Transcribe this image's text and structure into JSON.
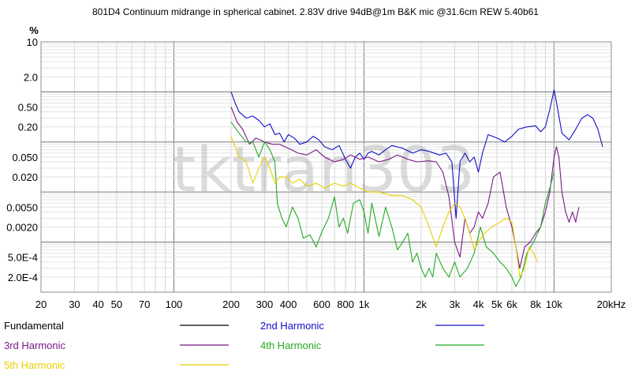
{
  "chart_data": {
    "type": "line",
    "title": "801D4 Continuum midrange in spherical cabinet. 2.83V drive 94dB@1m B&K mic @31.6cm REW 5.40b61",
    "ylabel": "%",
    "watermark": "tktran303",
    "x_scale": "log",
    "y_scale": "log",
    "xlim": [
      20,
      20000
    ],
    "ylim": [
      0.0001,
      10
    ],
    "x_ticks": [
      {
        "value": 20,
        "label": "20"
      },
      {
        "value": 30,
        "label": "30"
      },
      {
        "value": 40,
        "label": "40"
      },
      {
        "value": 50,
        "label": "50"
      },
      {
        "value": 70,
        "label": "70"
      },
      {
        "value": 100,
        "label": "100"
      },
      {
        "value": 200,
        "label": "200"
      },
      {
        "value": 300,
        "label": "300"
      },
      {
        "value": 400,
        "label": "400"
      },
      {
        "value": 600,
        "label": "600"
      },
      {
        "value": 800,
        "label": "800"
      },
      {
        "value": 1000,
        "label": "1k"
      },
      {
        "value": 2000,
        "label": "2k"
      },
      {
        "value": 3000,
        "label": "3k"
      },
      {
        "value": 4000,
        "label": "4k"
      },
      {
        "value": 5000,
        "label": "5k"
      },
      {
        "value": 6000,
        "label": "6k"
      },
      {
        "value": 8000,
        "label": "8k"
      },
      {
        "value": 10000,
        "label": "10k"
      },
      {
        "value": 20000,
        "label": "20kHz"
      }
    ],
    "y_ticks": [
      {
        "value": 10,
        "label": "10"
      },
      {
        "value": 2,
        "label": "2.0"
      },
      {
        "value": 0.5,
        "label": "0.50"
      },
      {
        "value": 0.2,
        "label": "0.20"
      },
      {
        "value": 0.05,
        "label": "0.050"
      },
      {
        "value": 0.02,
        "label": "0.020"
      },
      {
        "value": 0.005,
        "label": "0.0050"
      },
      {
        "value": 0.002,
        "label": "0.0020"
      },
      {
        "value": 0.0005,
        "label": "5.0E-4"
      },
      {
        "value": 0.0002,
        "label": "2.0E-4"
      }
    ],
    "series": [
      {
        "name": "Fundamental",
        "color": "#000000",
        "points": []
      },
      {
        "name": "2nd Harmonic",
        "color": "#1010c8",
        "points": [
          [
            200,
            1.0
          ],
          [
            210,
            0.6
          ],
          [
            220,
            0.4
          ],
          [
            240,
            0.3
          ],
          [
            260,
            0.33
          ],
          [
            280,
            0.27
          ],
          [
            300,
            0.2
          ],
          [
            320,
            0.23
          ],
          [
            340,
            0.14
          ],
          [
            360,
            0.15
          ],
          [
            380,
            0.1
          ],
          [
            400,
            0.14
          ],
          [
            430,
            0.12
          ],
          [
            460,
            0.09
          ],
          [
            500,
            0.1
          ],
          [
            540,
            0.13
          ],
          [
            580,
            0.11
          ],
          [
            620,
            0.08
          ],
          [
            680,
            0.07
          ],
          [
            740,
            0.085
          ],
          [
            800,
            0.045
          ],
          [
            850,
            0.03
          ],
          [
            900,
            0.05
          ],
          [
            950,
            0.06
          ],
          [
            1000,
            0.045
          ],
          [
            1050,
            0.06
          ],
          [
            1100,
            0.065
          ],
          [
            1200,
            0.055
          ],
          [
            1300,
            0.07
          ],
          [
            1400,
            0.085
          ],
          [
            1600,
            0.075
          ],
          [
            1800,
            0.06
          ],
          [
            2000,
            0.07
          ],
          [
            2200,
            0.065
          ],
          [
            2500,
            0.055
          ],
          [
            2700,
            0.06
          ],
          [
            2900,
            0.04
          ],
          [
            3050,
            0.003
          ],
          [
            3200,
            0.04
          ],
          [
            3400,
            0.06
          ],
          [
            3600,
            0.04
          ],
          [
            3800,
            0.05
          ],
          [
            4000,
            0.025
          ],
          [
            4200,
            0.06
          ],
          [
            4500,
            0.14
          ],
          [
            5000,
            0.12
          ],
          [
            5500,
            0.1
          ],
          [
            6000,
            0.13
          ],
          [
            6500,
            0.18
          ],
          [
            7200,
            0.2
          ],
          [
            8000,
            0.21
          ],
          [
            8500,
            0.16
          ],
          [
            9000,
            0.2
          ],
          [
            9500,
            0.45
          ],
          [
            10000,
            1.1
          ],
          [
            10400,
            0.5
          ],
          [
            11000,
            0.15
          ],
          [
            12000,
            0.11
          ],
          [
            13000,
            0.18
          ],
          [
            14000,
            0.3
          ],
          [
            15000,
            0.35
          ],
          [
            16000,
            0.3
          ],
          [
            17000,
            0.18
          ],
          [
            18000,
            0.08
          ]
        ]
      },
      {
        "name": "3rd Harmonic",
        "color": "#7a1888",
        "points": [
          [
            200,
            0.5
          ],
          [
            215,
            0.25
          ],
          [
            230,
            0.18
          ],
          [
            250,
            0.09
          ],
          [
            270,
            0.12
          ],
          [
            300,
            0.1
          ],
          [
            330,
            0.09
          ],
          [
            360,
            0.09
          ],
          [
            400,
            0.075
          ],
          [
            450,
            0.06
          ],
          [
            500,
            0.055
          ],
          [
            560,
            0.07
          ],
          [
            620,
            0.05
          ],
          [
            700,
            0.04
          ],
          [
            780,
            0.045
          ],
          [
            850,
            0.055
          ],
          [
            950,
            0.045
          ],
          [
            1050,
            0.05
          ],
          [
            1200,
            0.04
          ],
          [
            1350,
            0.045
          ],
          [
            1500,
            0.055
          ],
          [
            1700,
            0.045
          ],
          [
            1900,
            0.04
          ],
          [
            2200,
            0.042
          ],
          [
            2400,
            0.04
          ],
          [
            2600,
            0.025
          ],
          [
            2800,
            0.008
          ],
          [
            3000,
            0.001
          ],
          [
            3200,
            0.0005
          ],
          [
            3400,
            0.003
          ],
          [
            3600,
            0.0015
          ],
          [
            3800,
            0.002
          ],
          [
            4000,
            0.004
          ],
          [
            4200,
            0.003
          ],
          [
            4500,
            0.006
          ],
          [
            4800,
            0.02
          ],
          [
            5200,
            0.025
          ],
          [
            5600,
            0.005
          ],
          [
            6000,
            0.002
          ],
          [
            6300,
            0.0008
          ],
          [
            6600,
            0.0003
          ],
          [
            7000,
            0.0008
          ],
          [
            7500,
            0.001
          ],
          [
            8000,
            0.0015
          ],
          [
            8500,
            0.002
          ],
          [
            9000,
            0.004
          ],
          [
            9500,
            0.01
          ],
          [
            10000,
            0.05
          ],
          [
            10300,
            0.08
          ],
          [
            10600,
            0.05
          ],
          [
            11000,
            0.01
          ],
          [
            11500,
            0.004
          ],
          [
            12000,
            0.0025
          ],
          [
            12500,
            0.004
          ],
          [
            13000,
            0.0025
          ],
          [
            13500,
            0.005
          ]
        ]
      },
      {
        "name": "4th Harmonic",
        "color": "#22aa22",
        "points": [
          [
            200,
            0.25
          ],
          [
            220,
            0.15
          ],
          [
            240,
            0.1
          ],
          [
            260,
            0.1
          ],
          [
            280,
            0.05
          ],
          [
            300,
            0.1
          ],
          [
            320,
            0.07
          ],
          [
            340,
            0.04
          ],
          [
            350,
            0.006
          ],
          [
            370,
            0.003
          ],
          [
            390,
            0.002
          ],
          [
            420,
            0.005
          ],
          [
            450,
            0.003
          ],
          [
            480,
            0.0012
          ],
          [
            520,
            0.0014
          ],
          [
            560,
            0.0008
          ],
          [
            600,
            0.0016
          ],
          [
            650,
            0.003
          ],
          [
            700,
            0.008
          ],
          [
            740,
            0.002
          ],
          [
            780,
            0.003
          ],
          [
            820,
            0.0015
          ],
          [
            880,
            0.006
          ],
          [
            950,
            0.007
          ],
          [
            1000,
            0.004
          ],
          [
            1050,
            0.0015
          ],
          [
            1100,
            0.006
          ],
          [
            1200,
            0.0013
          ],
          [
            1300,
            0.005
          ],
          [
            1400,
            0.002
          ],
          [
            1500,
            0.0007
          ],
          [
            1600,
            0.001
          ],
          [
            1700,
            0.0015
          ],
          [
            1800,
            0.0004
          ],
          [
            1900,
            0.0006
          ],
          [
            2000,
            0.0003
          ],
          [
            2100,
            0.0002
          ],
          [
            2200,
            0.0003
          ],
          [
            2300,
            0.0002
          ],
          [
            2400,
            0.0006
          ],
          [
            2600,
            0.0003
          ],
          [
            2800,
            0.0002
          ],
          [
            3000,
            0.0004
          ],
          [
            3200,
            0.0002
          ],
          [
            3500,
            0.0003
          ],
          [
            3800,
            0.0006
          ],
          [
            4100,
            0.002
          ],
          [
            4400,
            0.0008
          ],
          [
            4800,
            0.0006
          ],
          [
            5200,
            0.0004
          ],
          [
            5600,
            0.0003
          ],
          [
            6000,
            0.0002
          ],
          [
            6300,
            0.00013
          ],
          [
            6700,
            0.0002
          ],
          [
            7200,
            0.0006
          ],
          [
            7800,
            0.001
          ],
          [
            8500,
            0.002
          ],
          [
            9000,
            0.006
          ],
          [
            9500,
            0.012
          ],
          [
            10000,
            0.025
          ]
        ]
      },
      {
        "name": "5th Harmonic",
        "color": "#e8d000",
        "points": [
          [
            200,
            0.13
          ],
          [
            220,
            0.05
          ],
          [
            240,
            0.04
          ],
          [
            260,
            0.015
          ],
          [
            280,
            0.03
          ],
          [
            300,
            0.05
          ],
          [
            320,
            0.03
          ],
          [
            340,
            0.015
          ],
          [
            360,
            0.02
          ],
          [
            390,
            0.02
          ],
          [
            420,
            0.015
          ],
          [
            460,
            0.018
          ],
          [
            500,
            0.013
          ],
          [
            560,
            0.015
          ],
          [
            620,
            0.012
          ],
          [
            700,
            0.015
          ],
          [
            780,
            0.013
          ],
          [
            850,
            0.015
          ],
          [
            950,
            0.012
          ],
          [
            1050,
            0.01
          ],
          [
            1200,
            0.01
          ],
          [
            1400,
            0.0085
          ],
          [
            1600,
            0.0085
          ],
          [
            1800,
            0.007
          ],
          [
            2000,
            0.005
          ],
          [
            2200,
            0.002
          ],
          [
            2400,
            0.0008
          ],
          [
            2600,
            0.002
          ],
          [
            2800,
            0.004
          ],
          [
            3000,
            0.006
          ],
          [
            3200,
            0.005
          ],
          [
            3400,
            0.003
          ],
          [
            3600,
            0.0015
          ],
          [
            3800,
            0.0007
          ],
          [
            4000,
            0.001
          ],
          [
            4300,
            0.0015
          ],
          [
            4700,
            0.002
          ],
          [
            5200,
            0.0025
          ],
          [
            5600,
            0.003
          ],
          [
            6000,
            0.0025
          ],
          [
            6300,
            0.0008
          ],
          [
            6600,
            0.0002
          ],
          [
            7000,
            0.0003
          ],
          [
            7400,
            0.0008
          ],
          [
            7800,
            0.0006
          ],
          [
            8200,
            0.0004
          ]
        ]
      }
    ],
    "legend": [
      {
        "name": "Fundamental",
        "color": "#000000",
        "text_color": "#000000"
      },
      {
        "name": "2nd Harmonic",
        "color": "#1010c8",
        "text_color": "#1010c8"
      },
      {
        "name": "3rd Harmonic",
        "color": "#7a1888",
        "text_color": "#7a1888"
      },
      {
        "name": "4th Harmonic",
        "color": "#22aa22",
        "text_color": "#22aa22"
      },
      {
        "name": "5th Harmonic",
        "color": "#e8d000",
        "text_color": "#e8d000"
      }
    ]
  }
}
